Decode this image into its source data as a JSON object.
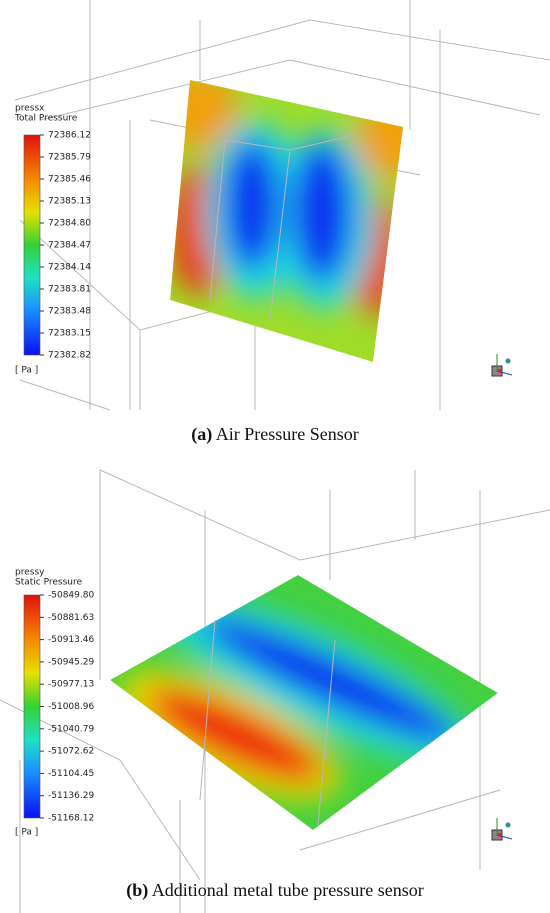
{
  "panels": [
    {
      "legend": {
        "variable": "pressx",
        "quantity": "Total Pressure",
        "ticks": [
          "72386.12",
          "72385.79",
          "72385.46",
          "72385.13",
          "72384.80",
          "72384.47",
          "72384.14",
          "72383.81",
          "72383.48",
          "72383.15",
          "72382.82"
        ],
        "unit": "[ Pa ]"
      },
      "caption": {
        "label": "(a)",
        "text": "Air Pressure Sensor"
      }
    },
    {
      "legend": {
        "variable": "pressy",
        "quantity": "Static Pressure",
        "ticks": [
          "-50849.80",
          "-50881.63",
          "-50913.46",
          "-50945.29",
          "-50977.13",
          "-51008.96",
          "-51040.79",
          "-51072.62",
          "-51104.45",
          "-51136.29",
          "-51168.12"
        ],
        "unit": "[ Pa ]"
      },
      "caption": {
        "label": "(b)",
        "text": "Additional metal tube pressure sensor"
      }
    }
  ]
}
